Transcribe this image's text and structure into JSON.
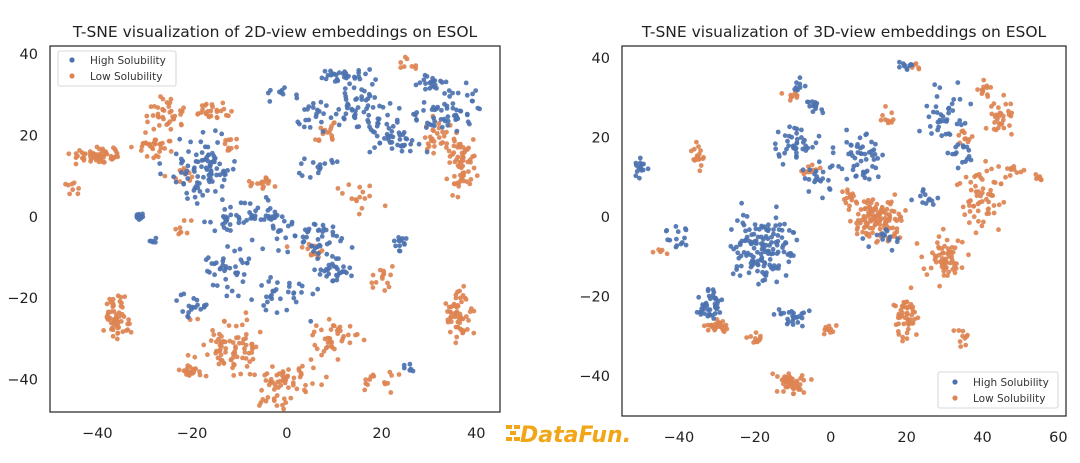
{
  "colors": {
    "high": "#4c72b0",
    "low": "#dd8452",
    "watermark": "#f2a516"
  },
  "watermark": {
    "text": "DataFun."
  },
  "chart_data": [
    {
      "type": "scatter",
      "title": "T-SNE visualization of 2D-view embeddings on ESOL",
      "xlim": [
        -50,
        45
      ],
      "ylim": [
        -48,
        42
      ],
      "xticks": [
        -40,
        -20,
        0,
        20,
        40
      ],
      "yticks": [
        -40,
        -20,
        0,
        20,
        40
      ],
      "grid": false,
      "legend_position": "top-left",
      "series": [
        {
          "name": "High Solubility",
          "color": "#4c72b0",
          "clusters": [
            [
              -18,
              12,
              7,
              8,
              90
            ],
            [
              -10,
              0,
              8,
              5,
              40
            ],
            [
              -31,
              0,
              1,
              1,
              15
            ],
            [
              -28,
              -6,
              1,
              1,
              6
            ],
            [
              -12,
              -12,
              6,
              6,
              40
            ],
            [
              -3,
              0,
              4,
              3,
              20
            ],
            [
              5,
              -5,
              10,
              5,
              50
            ],
            [
              10,
              -13,
              4,
              3,
              30
            ],
            [
              15,
              27,
              8,
              6,
              60
            ],
            [
              23,
              19,
              6,
              5,
              40
            ],
            [
              33,
              27,
              8,
              6,
              60
            ],
            [
              30,
              33,
              3,
              2,
              20
            ],
            [
              12,
              35,
              6,
              2,
              30
            ],
            [
              5,
              25,
              4,
              5,
              20
            ],
            [
              24,
              -7,
              2,
              2,
              12
            ],
            [
              0,
              -20,
              8,
              6,
              30
            ],
            [
              -20,
              -22,
              4,
              3,
              20
            ],
            [
              6,
              12,
              5,
              3,
              15
            ],
            [
              26,
              -37,
              2,
              1,
              6
            ],
            [
              -2,
              30,
              3,
              2,
              8
            ]
          ]
        },
        {
          "name": "Low Solubility",
          "color": "#dd8452",
          "clusters": [
            [
              -40,
              15,
              5,
              2,
              60
            ],
            [
              -28,
              17,
              4,
              3,
              30
            ],
            [
              -25,
              25,
              5,
              4,
              40
            ],
            [
              -15,
              26,
              4,
              3,
              25
            ],
            [
              -36,
              -25,
              3,
              6,
              60
            ],
            [
              -13,
              -32,
              7,
              8,
              80
            ],
            [
              0,
              -40,
              7,
              3,
              50
            ],
            [
              10,
              -30,
              6,
              5,
              40
            ],
            [
              -20,
              -38,
              3,
              2,
              20
            ],
            [
              36,
              -24,
              3,
              7,
              60
            ],
            [
              37,
              13,
              3,
              7,
              60
            ],
            [
              32,
              20,
              4,
              4,
              30
            ],
            [
              -5,
              8,
              3,
              2,
              15
            ],
            [
              5,
              -8,
              4,
              3,
              15
            ],
            [
              8,
              20,
              3,
              3,
              15
            ],
            [
              20,
              -15,
              3,
              3,
              15
            ],
            [
              -22,
              10,
              3,
              3,
              10
            ],
            [
              -12,
              18,
              2,
              2,
              10
            ],
            [
              15,
              5,
              5,
              4,
              15
            ],
            [
              -3,
              -45,
              4,
              2,
              15
            ],
            [
              20,
              -40,
              5,
              3,
              15
            ],
            [
              -45,
              7,
              2,
              2,
              8
            ],
            [
              25,
              38,
              2,
              2,
              8
            ],
            [
              -22,
              -3,
              2,
              3,
              8
            ]
          ]
        }
      ]
    },
    {
      "type": "scatter",
      "title": "T-SNE visualization of 3D-view embeddings on ESOL",
      "xlim": [
        -55,
        62
      ],
      "ylim": [
        -50,
        43
      ],
      "xticks": [
        -40,
        -20,
        0,
        20,
        40,
        60
      ],
      "yticks": [
        -40,
        -20,
        0,
        20,
        40
      ],
      "grid": false,
      "legend_position": "bottom-right",
      "series": [
        {
          "name": "High Solubility",
          "color": "#4c72b0",
          "clusters": [
            [
              -18,
              -8,
              9,
              9,
              140
            ],
            [
              -32,
              -22,
              3,
              4,
              40
            ],
            [
              -10,
              18,
              6,
              5,
              40
            ],
            [
              -4,
              28,
              3,
              2,
              15
            ],
            [
              -50,
              12,
              2,
              3,
              15
            ],
            [
              8,
              15,
              7,
              6,
              50
            ],
            [
              20,
              38,
              2,
              1,
              10
            ],
            [
              30,
              25,
              6,
              8,
              40
            ],
            [
              35,
              15,
              4,
              4,
              15
            ],
            [
              -3,
              10,
              4,
              4,
              20
            ],
            [
              15,
              -5,
              5,
              4,
              15
            ],
            [
              -10,
              -25,
              5,
              3,
              25
            ],
            [
              25,
              5,
              4,
              3,
              12
            ],
            [
              -40,
              -5,
              4,
              4,
              15
            ],
            [
              -8,
              33,
              2,
              2,
              8
            ]
          ]
        },
        {
          "name": "Low Solubility",
          "color": "#dd8452",
          "clusters": [
            [
              12,
              0,
              7,
              5,
              120
            ],
            [
              -10,
              -42,
              4,
              3,
              50
            ],
            [
              20,
              -25,
              3,
              6,
              50
            ],
            [
              30,
              -10,
              6,
              6,
              60
            ],
            [
              40,
              5,
              6,
              8,
              60
            ],
            [
              -30,
              -28,
              3,
              2,
              30
            ],
            [
              -35,
              15,
              2,
              4,
              20
            ],
            [
              45,
              25,
              4,
              5,
              30
            ],
            [
              40,
              32,
              3,
              2,
              12
            ],
            [
              35,
              20,
              3,
              2,
              10
            ],
            [
              48,
              12,
              3,
              2,
              10
            ],
            [
              -5,
              12,
              3,
              2,
              10
            ],
            [
              5,
              5,
              3,
              3,
              15
            ],
            [
              -10,
              30,
              3,
              2,
              10
            ],
            [
              15,
              25,
              2,
              3,
              10
            ],
            [
              55,
              10,
              1,
              1,
              8
            ],
            [
              -45,
              -8,
              2,
              2,
              5
            ],
            [
              0,
              -28,
              3,
              2,
              10
            ],
            [
              -20,
              -30,
              3,
              2,
              10
            ],
            [
              35,
              -30,
              3,
              3,
              10
            ],
            [
              22,
              38,
              2,
              1,
              6
            ]
          ]
        }
      ]
    }
  ]
}
